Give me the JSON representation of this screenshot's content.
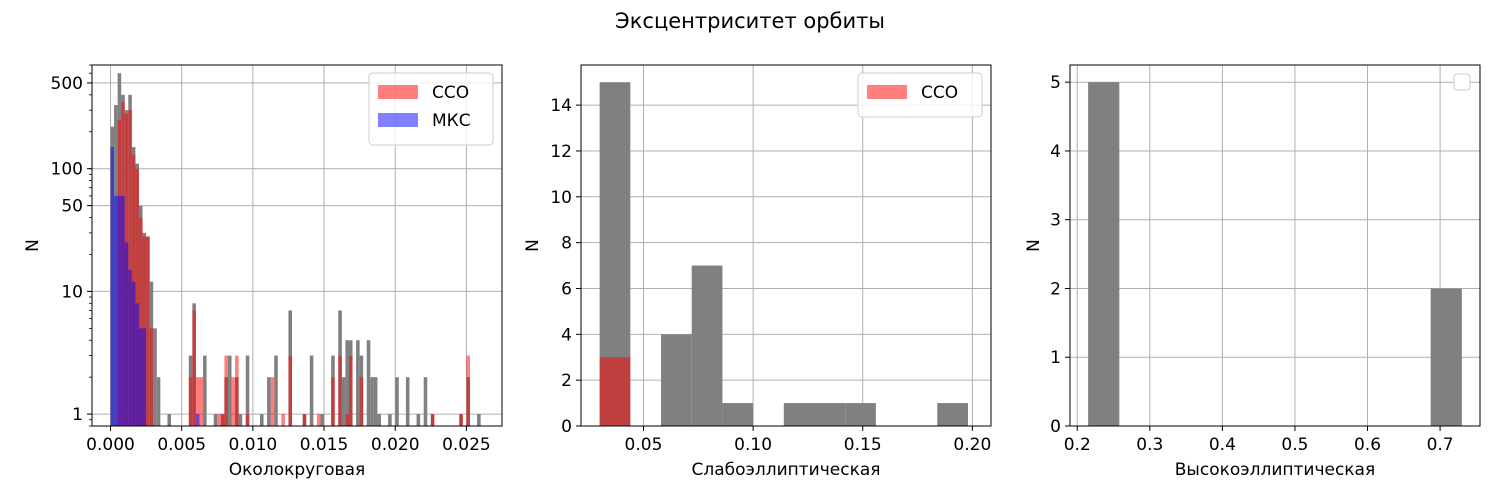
{
  "suptitle": "Эксцентриситет орбиты",
  "colors": {
    "all": "#808080",
    "sso": "#ff0000",
    "iss": "#0000ff",
    "grid": "#b0b0b0"
  },
  "chart_data": [
    {
      "type": "bar",
      "xlabel": "Околокруговая",
      "ylabel": "N",
      "yscale": "log",
      "xlim": [
        -0.0013,
        0.0275
      ],
      "ylim": [
        0.8,
        700
      ],
      "xticks": [
        0.0,
        0.005,
        0.01,
        0.015,
        0.02,
        0.025
      ],
      "xtick_labels": [
        "0.000",
        "0.005",
        "0.010",
        "0.015",
        "0.020",
        "0.025"
      ],
      "yticks": [
        1,
        10,
        50,
        100,
        500
      ],
      "ytick_labels": [
        "1",
        "10",
        "50",
        "100",
        "500"
      ],
      "grid": true,
      "legend": {
        "location": "upper right",
        "entries": [
          {
            "label": "ССО",
            "series": "sso"
          },
          {
            "label": "МКС",
            "series": "iss"
          }
        ]
      },
      "series": [
        {
          "key": "all",
          "color_key": "all",
          "opacity": 1,
          "bins": [
            [
              0.0,
              0.00025,
              220
            ],
            [
              0.00025,
              0.0005,
              330
            ],
            [
              0.0005,
              0.00075,
              600
            ],
            [
              0.00075,
              0.001,
              400
            ],
            [
              0.001,
              0.00125,
              300
            ],
            [
              0.00125,
              0.0015,
              400
            ],
            [
              0.0015,
              0.00175,
              150
            ],
            [
              0.00175,
              0.002,
              110
            ],
            [
              0.002,
              0.00225,
              50
            ],
            [
              0.00225,
              0.0025,
              30
            ],
            [
              0.0025,
              0.00275,
              28
            ],
            [
              0.00275,
              0.003,
              12
            ],
            [
              0.003,
              0.00325,
              5
            ],
            [
              0.00325,
              0.0035,
              2
            ],
            [
              0.004,
              0.00425,
              1
            ],
            [
              0.0055,
              0.00575,
              3
            ],
            [
              0.00575,
              0.006,
              8
            ],
            [
              0.0065,
              0.00675,
              3
            ],
            [
              0.00725,
              0.0075,
              1
            ],
            [
              0.00775,
              0.008,
              1
            ],
            [
              0.008,
              0.00825,
              2
            ],
            [
              0.00825,
              0.0085,
              3
            ],
            [
              0.00875,
              0.009,
              2
            ],
            [
              0.009,
              0.00925,
              1
            ],
            [
              0.0095,
              0.00975,
              3
            ],
            [
              0.0105,
              0.01075,
              1
            ],
            [
              0.011,
              0.01125,
              2
            ],
            [
              0.0115,
              0.01175,
              3
            ],
            [
              0.0125,
              0.01275,
              7
            ],
            [
              0.0135,
              0.01375,
              1
            ],
            [
              0.014,
              0.01425,
              3
            ],
            [
              0.01475,
              0.015,
              1
            ],
            [
              0.0155,
              0.01575,
              3
            ],
            [
              0.016,
              0.01625,
              7
            ],
            [
              0.01625,
              0.0165,
              2
            ],
            [
              0.0165,
              0.01675,
              4
            ],
            [
              0.01675,
              0.017,
              4
            ],
            [
              0.01725,
              0.0175,
              4
            ],
            [
              0.0175,
              0.01775,
              3
            ],
            [
              0.018,
              0.01825,
              4
            ],
            [
              0.01825,
              0.0185,
              2
            ],
            [
              0.0185,
              0.01875,
              2
            ],
            [
              0.01875,
              0.019,
              1
            ],
            [
              0.0195,
              0.01975,
              1
            ],
            [
              0.02,
              0.02025,
              2
            ],
            [
              0.02075,
              0.021,
              2
            ],
            [
              0.0215,
              0.02175,
              1
            ],
            [
              0.022,
              0.02225,
              2
            ],
            [
              0.0225,
              0.02275,
              1
            ],
            [
              0.0245,
              0.02475,
              1
            ],
            [
              0.025,
              0.02525,
              2
            ],
            [
              0.02575,
              0.026,
              1
            ]
          ]
        },
        {
          "key": "sso",
          "color_key": "sso",
          "opacity": 0.5,
          "bins": [
            [
              0.0005,
              0.00075,
              250
            ],
            [
              0.00075,
              0.001,
              350
            ],
            [
              0.001,
              0.00125,
              280
            ],
            [
              0.00125,
              0.0015,
              300
            ],
            [
              0.0015,
              0.00175,
              130
            ],
            [
              0.00175,
              0.002,
              100
            ],
            [
              0.002,
              0.00225,
              40
            ],
            [
              0.00225,
              0.0025,
              28
            ],
            [
              0.0025,
              0.00275,
              28
            ],
            [
              0.00275,
              0.003,
              5
            ],
            [
              0.0055,
              0.00575,
              2
            ],
            [
              0.00575,
              0.006,
              7
            ],
            [
              0.006,
              0.00625,
              2
            ],
            [
              0.00625,
              0.0065,
              2
            ],
            [
              0.0075,
              0.00775,
              1
            ],
            [
              0.00775,
              0.008,
              1
            ],
            [
              0.008,
              0.00825,
              3
            ],
            [
              0.0085,
              0.00875,
              2
            ],
            [
              0.00875,
              0.009,
              3
            ],
            [
              0.0095,
              0.00975,
              1
            ],
            [
              0.01125,
              0.0115,
              2
            ],
            [
              0.012,
              0.01225,
              1
            ],
            [
              0.0125,
              0.01275,
              3
            ],
            [
              0.0135,
              0.01375,
              1
            ],
            [
              0.0145,
              0.01475,
              1
            ],
            [
              0.0155,
              0.01575,
              2
            ],
            [
              0.016,
              0.01625,
              3
            ],
            [
              0.0165,
              0.01675,
              1
            ],
            [
              0.01675,
              0.017,
              3
            ],
            [
              0.0175,
              0.01775,
              2
            ],
            [
              0.0225,
              0.02275,
              1
            ],
            [
              0.0245,
              0.02475,
              1
            ],
            [
              0.025,
              0.02525,
              3
            ]
          ]
        },
        {
          "key": "iss",
          "color_key": "iss",
          "opacity": 0.5,
          "bins": [
            [
              0.0,
              0.00025,
              150
            ],
            [
              0.00025,
              0.0005,
              60
            ],
            [
              0.0005,
              0.00075,
              60
            ],
            [
              0.00075,
              0.001,
              60
            ],
            [
              0.001,
              0.00125,
              25
            ],
            [
              0.00125,
              0.0015,
              15
            ],
            [
              0.0015,
              0.00175,
              12
            ],
            [
              0.00175,
              0.002,
              8
            ],
            [
              0.002,
              0.00225,
              5
            ],
            [
              0.00225,
              0.0025,
              5
            ],
            [
              0.006,
              0.00625,
              1
            ]
          ]
        }
      ]
    },
    {
      "type": "bar",
      "xlabel": "Слабоэллиптическая",
      "ylabel": "N",
      "yscale": "linear",
      "xlim": [
        0.0215,
        0.2085
      ],
      "ylim": [
        0,
        15.75
      ],
      "xticks": [
        0.05,
        0.1,
        0.15,
        0.2
      ],
      "xtick_labels": [
        "0.05",
        "0.10",
        "0.15",
        "0.20"
      ],
      "yticks": [
        0,
        2,
        4,
        6,
        8,
        10,
        12,
        14
      ],
      "ytick_labels": [
        "0",
        "2",
        "4",
        "6",
        "8",
        "10",
        "12",
        "14"
      ],
      "grid": true,
      "legend": {
        "location": "upper right",
        "entries": [
          {
            "label": "ССО",
            "series": "sso"
          }
        ]
      },
      "series": [
        {
          "key": "all",
          "color_key": "all",
          "opacity": 1,
          "bins": [
            [
              0.03,
              0.044,
              15
            ],
            [
              0.058,
              0.072,
              4
            ],
            [
              0.072,
              0.086,
              7
            ],
            [
              0.086,
              0.1,
              1
            ],
            [
              0.114,
              0.128,
              1
            ],
            [
              0.128,
              0.142,
              1
            ],
            [
              0.142,
              0.156,
              1
            ],
            [
              0.184,
              0.198,
              1
            ]
          ]
        },
        {
          "key": "sso",
          "color_key": "sso",
          "opacity": 0.5,
          "bins": [
            [
              0.03,
              0.044,
              3
            ]
          ]
        }
      ]
    },
    {
      "type": "bar",
      "xlabel": "Высокоэллиптическая",
      "ylabel": "N",
      "yscale": "linear",
      "xlim": [
        0.19,
        0.755
      ],
      "ylim": [
        0,
        5.25
      ],
      "xticks": [
        0.2,
        0.3,
        0.4,
        0.5,
        0.6,
        0.7
      ],
      "xtick_labels": [
        "0.2",
        "0.3",
        "0.4",
        "0.5",
        "0.6",
        "0.7"
      ],
      "yticks": [
        0,
        1,
        2,
        3,
        4,
        5
      ],
      "ytick_labels": [
        "0",
        "1",
        "2",
        "3",
        "4",
        "5"
      ],
      "grid": true,
      "legend": {
        "location": "upper right",
        "entries": []
      },
      "series": [
        {
          "key": "all",
          "color_key": "all",
          "opacity": 1,
          "bins": [
            [
              0.215,
              0.258,
              5
            ],
            [
              0.687,
              0.73,
              2
            ]
          ]
        }
      ]
    }
  ]
}
